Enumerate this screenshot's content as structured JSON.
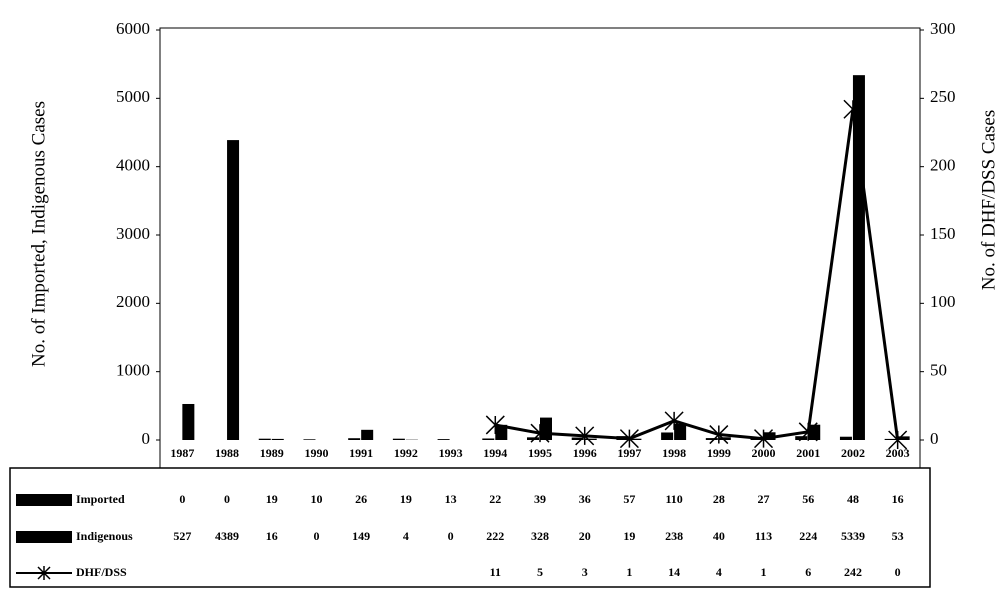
{
  "chart_data": {
    "type": "bar",
    "y_label": "No. of Imported, Indigenous Cases",
    "y2_label": "No. of DHF/DSS Cases",
    "categories": [
      "1987",
      "1988",
      "1989",
      "1990",
      "1991",
      "1992",
      "1993",
      "1994",
      "1995",
      "1996",
      "1997",
      "1998",
      "1999",
      "2000",
      "2001",
      "2002",
      "2003"
    ],
    "series": [
      {
        "name": "Imported",
        "color": "#000000",
        "type": "bar",
        "values": [
          0,
          0,
          19,
          10,
          26,
          19,
          13,
          22,
          39,
          36,
          57,
          110,
          28,
          27,
          56,
          48,
          16
        ]
      },
      {
        "name": "Indigenous",
        "color": "#000000",
        "type": "bar",
        "values": [
          527,
          4389,
          16,
          0,
          149,
          4,
          0,
          222,
          328,
          20,
          19,
          238,
          40,
          113,
          224,
          5339,
          53
        ]
      },
      {
        "name": "DHF/DSS",
        "color": "#000000",
        "type": "line",
        "axis": "y2",
        "values": [
          null,
          null,
          null,
          null,
          null,
          null,
          null,
          11,
          5,
          3,
          1,
          14,
          4,
          1,
          6,
          242,
          0
        ]
      }
    ],
    "ylim": [
      0,
      6000
    ],
    "yticks": [
      0,
      1000,
      2000,
      3000,
      4000,
      5000,
      6000
    ],
    "y2lim": [
      0,
      300
    ],
    "y2ticks": [
      0,
      50,
      100,
      150,
      200,
      250,
      300
    ]
  }
}
